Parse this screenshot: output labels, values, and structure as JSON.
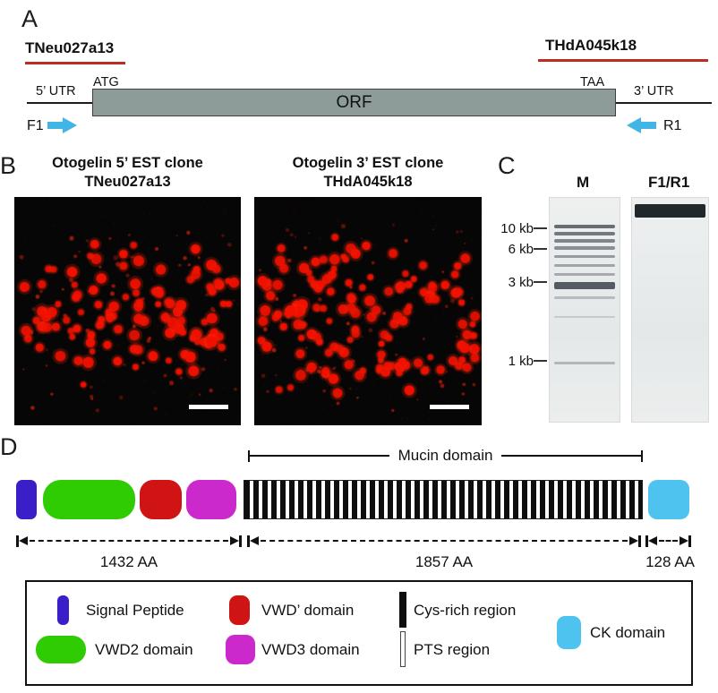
{
  "colors": {
    "signal_peptide": "#3a1fc8",
    "vwd2": "#2fcc03",
    "vwd_prime": "#d01414",
    "vwd3": "#cc29cc",
    "cys_rich": "#0e0e0e",
    "pts": "#ffffff",
    "ck": "#4fc3ef",
    "primer_arrow": "#41b6e6",
    "clone_line": "#bd2d1e",
    "orf_fill": "#8d9b99"
  },
  "panels": {
    "a": {
      "label": "A",
      "clone_left": "TNeu027a13",
      "clone_right": "THdA045k18",
      "utr5_label": "5’ UTR",
      "start_codon": "ATG",
      "orf_label": "ORF",
      "stop_codon": "TAA",
      "utr3_label": "3’ UTR",
      "forward_primer": "F1",
      "reverse_primer": "R1"
    },
    "b": {
      "label": "B",
      "left_image": {
        "title_line1": "Otogelin 5’ EST clone",
        "title_line2": "TNeu027a13"
      },
      "right_image": {
        "title_line1": "Otogelin 3’ EST clone",
        "title_line2": "THdA045k18"
      },
      "dot_color": "#f21000",
      "left_dot_count": 115,
      "right_dot_count": 140
    },
    "c": {
      "label": "C",
      "lane_marker_label": "M",
      "lane_pcr_label": "F1/R1",
      "size_markers": [
        "10 kb",
        "6 kb",
        "3 kb",
        "1 kb"
      ],
      "ladder_bands": [
        {
          "t": 30,
          "h": 4,
          "o": 0.75
        },
        {
          "t": 38,
          "h": 4,
          "o": 0.68
        },
        {
          "t": 46,
          "h": 4,
          "o": 0.6
        },
        {
          "t": 54,
          "h": 4,
          "o": 0.55
        },
        {
          "t": 64,
          "h": 3,
          "o": 0.48
        },
        {
          "t": 74,
          "h": 3,
          "o": 0.42
        },
        {
          "t": 84,
          "h": 3,
          "o": 0.38
        },
        {
          "t": 94,
          "h": 8,
          "o": 0.85
        },
        {
          "t": 110,
          "h": 3,
          "o": 0.28
        },
        {
          "t": 132,
          "h": 2,
          "o": 0.18
        },
        {
          "t": 183,
          "h": 3,
          "o": 0.3
        }
      ],
      "pcr_band": {
        "t": 7,
        "h": 15,
        "o": 0.95
      }
    },
    "d": {
      "label": "D",
      "mucin_bracket_label": "Mucin domain",
      "measurements": [
        {
          "label": "1432 AA"
        },
        {
          "label": "1857 AA"
        },
        {
          "label": "128 AA"
        }
      ],
      "legend": {
        "signal_peptide": "Signal Peptide",
        "vwd2": "VWD2 domain",
        "vwd_prime": "VWD’ domain",
        "vwd3": "VWD3 domain",
        "cys_rich": "Cys-rich region",
        "pts": "PTS region",
        "ck": "CK domain"
      }
    }
  }
}
